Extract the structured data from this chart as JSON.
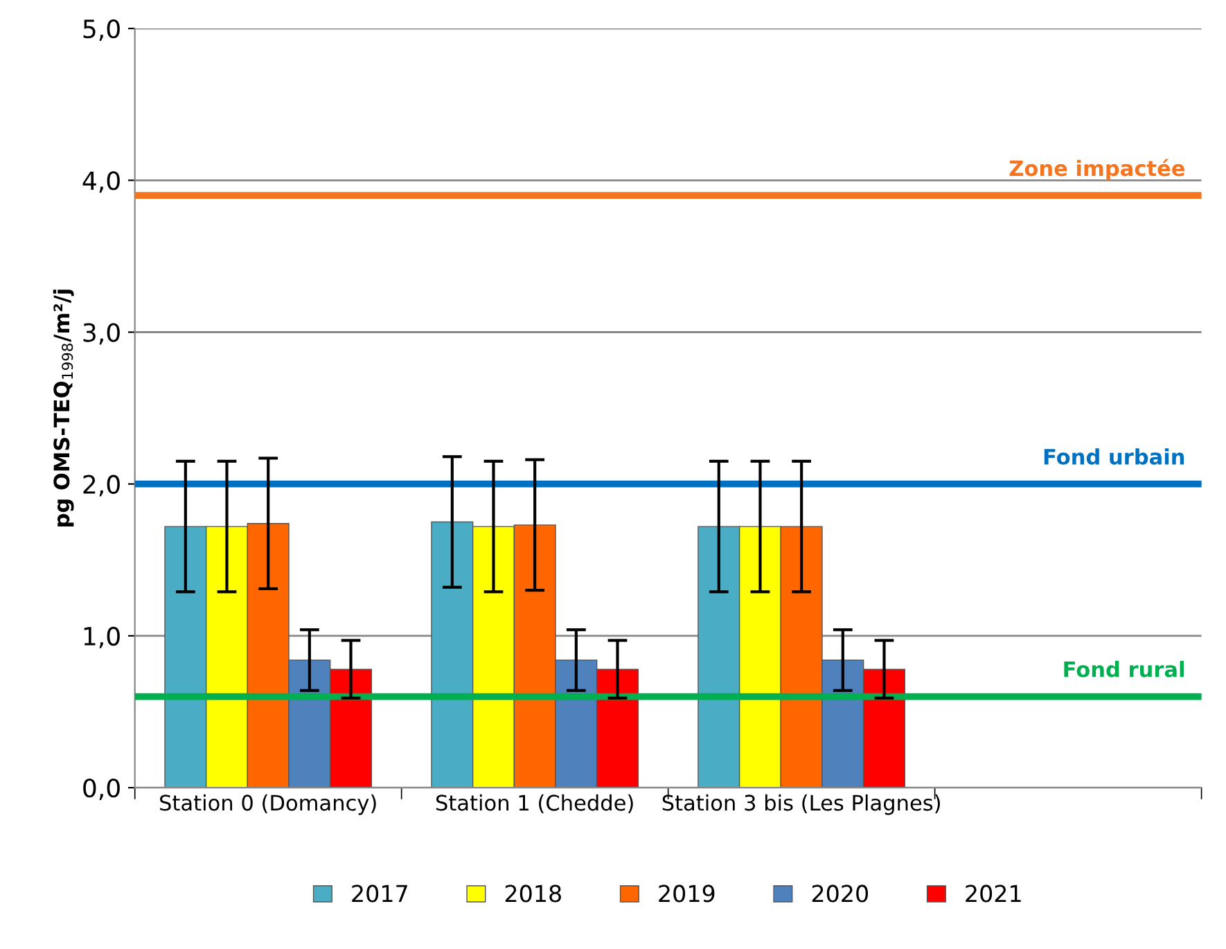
{
  "chart_data": {
    "type": "bar",
    "ylabel": "pg OMS-TEQ$_{1998}$/m²/j",
    "categories": [
      "Station 0 (Domancy)",
      "Station 1 (Chedde)",
      "Station 3 bis (Les Plagnes)",
      null
    ],
    "series": [
      {
        "name": "2017",
        "color": "#4bacc6",
        "values": [
          1.72,
          1.75,
          1.72,
          null
        ],
        "errors": [
          0.43,
          0.43,
          0.43,
          null
        ]
      },
      {
        "name": "2018",
        "color": "#ffff00",
        "values": [
          1.72,
          1.72,
          1.72,
          null
        ],
        "errors": [
          0.43,
          0.43,
          0.43,
          null
        ]
      },
      {
        "name": "2019",
        "color": "#ff6600",
        "values": [
          1.74,
          1.73,
          1.72,
          null
        ],
        "errors": [
          0.43,
          0.43,
          0.43,
          null
        ]
      },
      {
        "name": "2020",
        "color": "#4f81bd",
        "values": [
          0.84,
          0.84,
          0.84,
          null
        ],
        "errors": [
          0.2,
          0.2,
          0.2,
          null
        ]
      },
      {
        "name": "2021",
        "color": "#ff0000",
        "values": [
          0.78,
          0.78,
          0.78,
          null
        ],
        "errors": [
          0.19,
          0.19,
          0.19,
          null
        ]
      }
    ],
    "ylim": [
      0,
      5
    ],
    "yticks": [
      {
        "value": 0,
        "label": "0,0"
      },
      {
        "value": 1,
        "label": "1,0"
      },
      {
        "value": 2,
        "label": "2,0"
      },
      {
        "value": 3,
        "label": "3,0"
      },
      {
        "value": 4,
        "label": "4,0"
      },
      {
        "value": 5,
        "label": "5,0"
      }
    ],
    "ref_lines": [
      {
        "axis": "y",
        "value": 3.9,
        "label": "Zone impactée",
        "color": "#f5741f"
      },
      {
        "axis": "y",
        "value": 2.0,
        "label": "Fond urbain",
        "color": "#0070c0"
      },
      {
        "axis": "y",
        "value": 0.6,
        "label": "Fond rural",
        "color": "#00b050"
      }
    ],
    "grid": "y",
    "legend": "bottom"
  }
}
